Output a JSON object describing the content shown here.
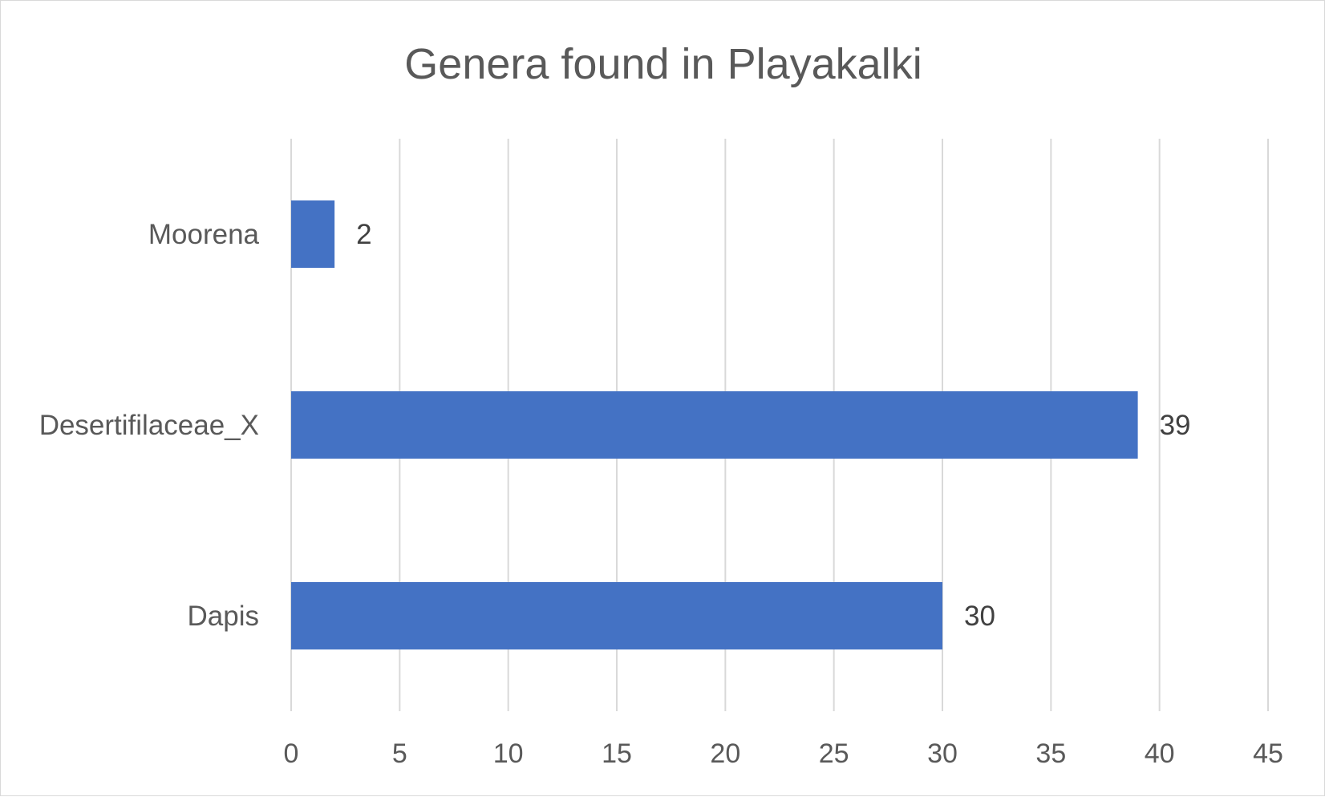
{
  "chart_data": {
    "type": "bar",
    "orientation": "horizontal",
    "title": "Genera found in Playakalki",
    "categories": [
      "Moorena",
      "Desertifilaceae_X",
      "Dapis"
    ],
    "values": [
      2,
      39,
      30
    ],
    "xlabel": "",
    "ylabel": "",
    "xlim": [
      0,
      45
    ],
    "x_ticks": [
      0,
      5,
      10,
      15,
      20,
      25,
      30,
      35,
      40,
      45
    ],
    "data_labels": [
      "2",
      "39",
      "30"
    ],
    "grid": "vertical",
    "legend": "none",
    "bar_color": "#4472c4"
  }
}
